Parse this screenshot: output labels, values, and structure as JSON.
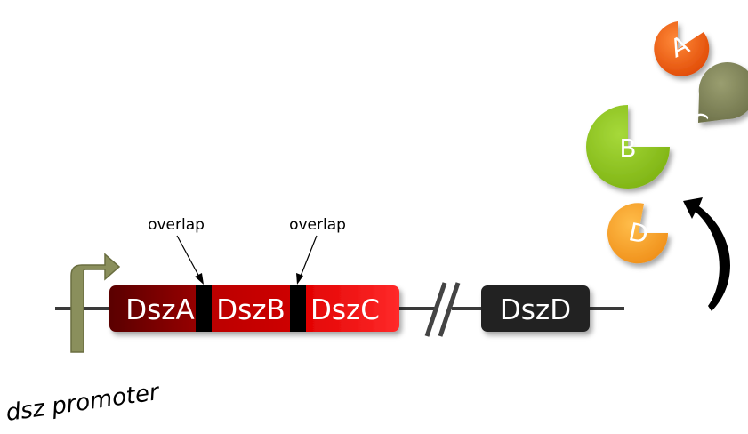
{
  "genes": {
    "dszA": {
      "label": "DszA",
      "color": "#8b0000"
    },
    "dszB": {
      "label": "DszB",
      "color": "#c00000"
    },
    "dszC": {
      "label": "DszC",
      "color": "#ff1a1a"
    },
    "dszD": {
      "label": "DszD",
      "color": "#222222"
    }
  },
  "overlaps": [
    {
      "label": "overlap"
    },
    {
      "label": "overlap"
    }
  ],
  "promoter": {
    "label": "dsz promoter",
    "color": "#8a8f5c"
  },
  "subunits": {
    "a": {
      "letter": "A",
      "color": "#ee5a11"
    },
    "b": {
      "letter": "B",
      "color": "#8cc21b"
    },
    "c": {
      "letter": "C",
      "color": "#7d8157"
    },
    "d": {
      "letter": "D",
      "color": "#f6a02a"
    }
  }
}
